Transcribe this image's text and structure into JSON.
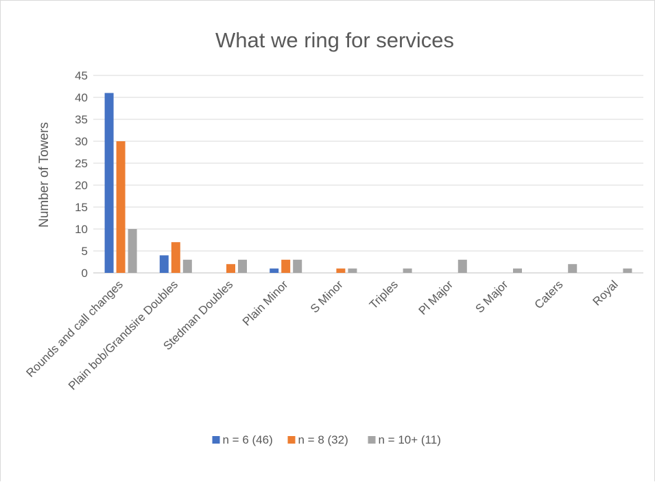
{
  "chart_data": {
    "type": "bar",
    "title": "What we ring for services",
    "xlabel": "",
    "ylabel": "Number of Towers",
    "ylim": [
      0,
      45
    ],
    "yticks": [
      0,
      5,
      10,
      15,
      20,
      25,
      30,
      35,
      40,
      45
    ],
    "grid": true,
    "legend_position": "bottom",
    "categories": [
      "Rounds and call changes",
      "Plain bob/Grandsire Doubles",
      "Stedman Doubles",
      "Plain Minor",
      "S Minor",
      "Triples",
      "Pl Major",
      "S Major",
      "Caters",
      "Royal"
    ],
    "series": [
      {
        "name": "n = 6 (46)",
        "color": "#4472c4",
        "values": [
          41,
          4,
          0,
          1,
          0,
          0,
          0,
          0,
          0,
          0
        ]
      },
      {
        "name": "n = 8 (32)",
        "color": "#ed7d31",
        "values": [
          30,
          7,
          2,
          3,
          1,
          0,
          0,
          0,
          0,
          0
        ]
      },
      {
        "name": "n = 10+ (11)",
        "color": "#a5a5a5",
        "values": [
          10,
          3,
          3,
          3,
          1,
          1,
          3,
          1,
          2,
          1
        ]
      }
    ]
  }
}
